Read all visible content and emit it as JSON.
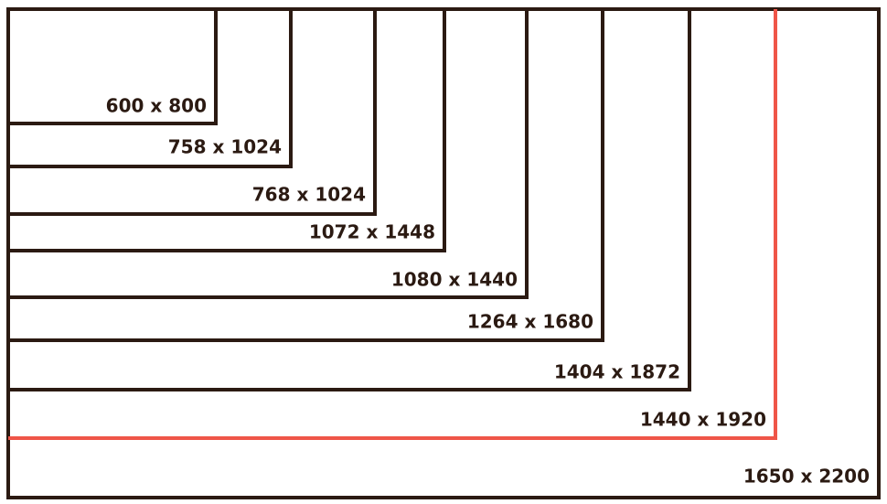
{
  "nodes": [
    {
      "label": "600 x 800"
    },
    {
      "label": "758 x 1024"
    },
    {
      "label": "768 x 1024"
    },
    {
      "label": "1072 x 1448"
    },
    {
      "label": "1080 x 1440"
    },
    {
      "label": "1264 x 1680"
    },
    {
      "label": "1404 x 1872"
    },
    {
      "label": "1440 x 1920"
    },
    {
      "label": "1650 x 2200"
    }
  ]
}
